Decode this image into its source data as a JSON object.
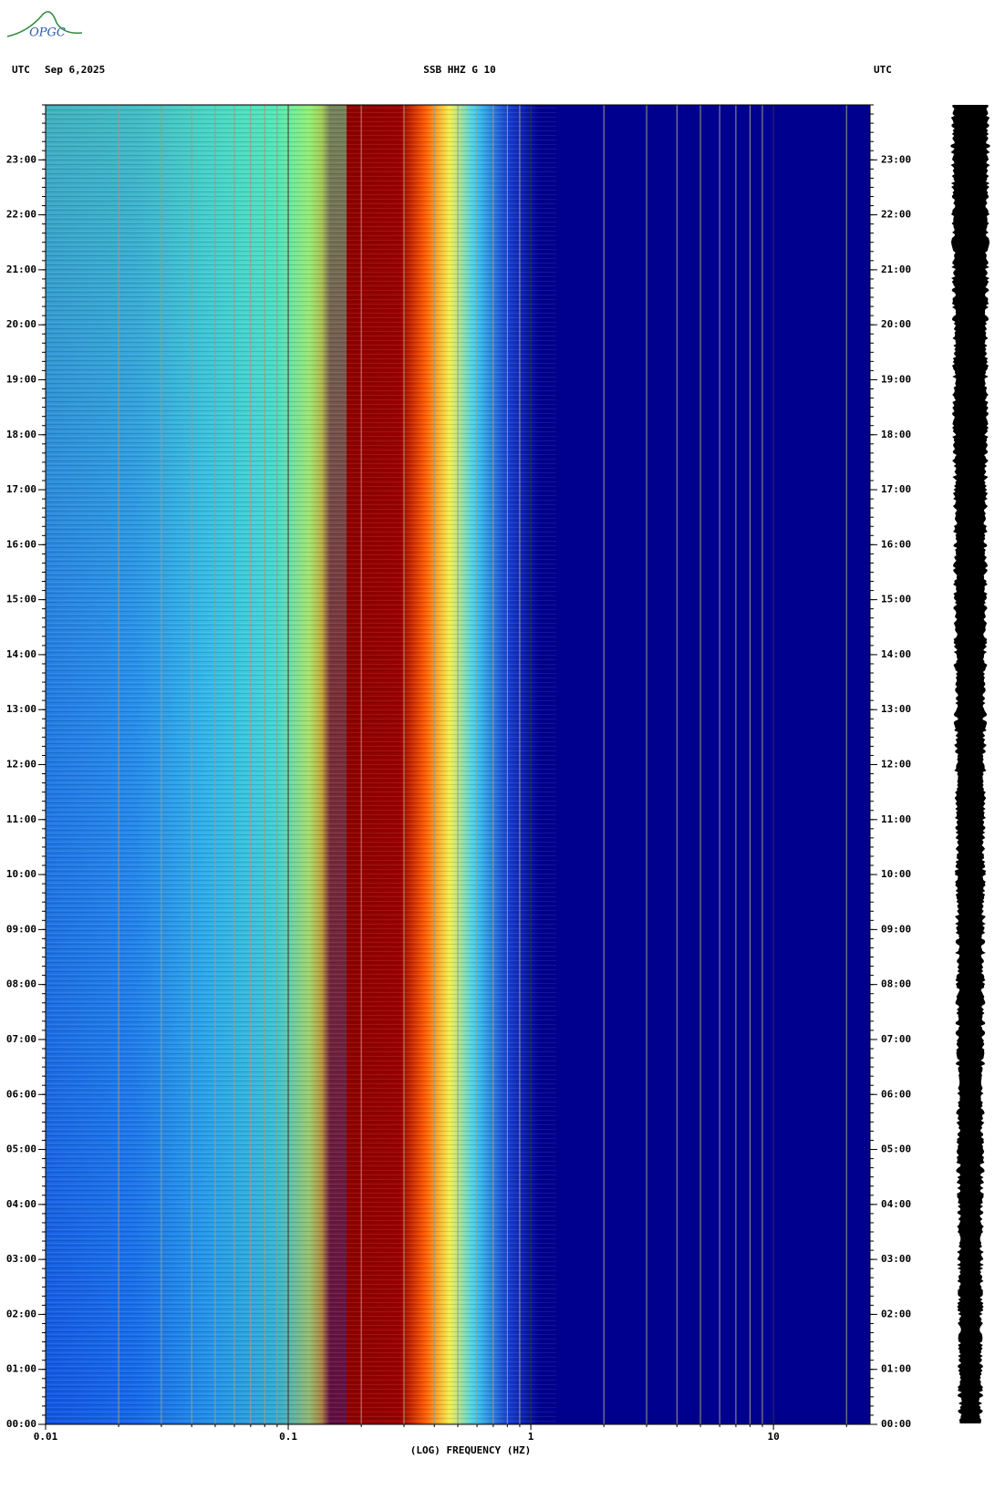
{
  "logo": "OPGC",
  "chart_data": {
    "type": "spectrogram",
    "title": "SSB HHZ G 10",
    "date": "Sep 6,2025",
    "timezone": "UTC",
    "xlabel": "(LOG) FREQUENCY (HZ)",
    "log_x": true,
    "xlim": [
      0.01,
      25
    ],
    "xticks": [
      0.01,
      0.1,
      1,
      10
    ],
    "ylim": [
      0,
      24
    ],
    "yticks": [
      {
        "value": 0,
        "label": "00:00"
      },
      {
        "value": 1,
        "label": "01:00"
      },
      {
        "value": 2,
        "label": "02:00"
      },
      {
        "value": 3,
        "label": "03:00"
      },
      {
        "value": 4,
        "label": "04:00"
      },
      {
        "value": 5,
        "label": "05:00"
      },
      {
        "value": 6,
        "label": "06:00"
      },
      {
        "value": 7,
        "label": "07:00"
      },
      {
        "value": 8,
        "label": "08:00"
      },
      {
        "value": 9,
        "label": "09:00"
      },
      {
        "value": 10,
        "label": "10:00"
      },
      {
        "value": 11,
        "label": "11:00"
      },
      {
        "value": 12,
        "label": "12:00"
      },
      {
        "value": 13,
        "label": "13:00"
      },
      {
        "value": 14,
        "label": "14:00"
      },
      {
        "value": 15,
        "label": "15:00"
      },
      {
        "value": 16,
        "label": "16:00"
      },
      {
        "value": 17,
        "label": "17:00"
      },
      {
        "value": 18,
        "label": "18:00"
      },
      {
        "value": 19,
        "label": "19:00"
      },
      {
        "value": 20,
        "label": "20:00"
      },
      {
        "value": 21,
        "label": "21:00"
      },
      {
        "value": 22,
        "label": "22:00"
      },
      {
        "value": 23,
        "label": "23:00"
      }
    ]
  }
}
